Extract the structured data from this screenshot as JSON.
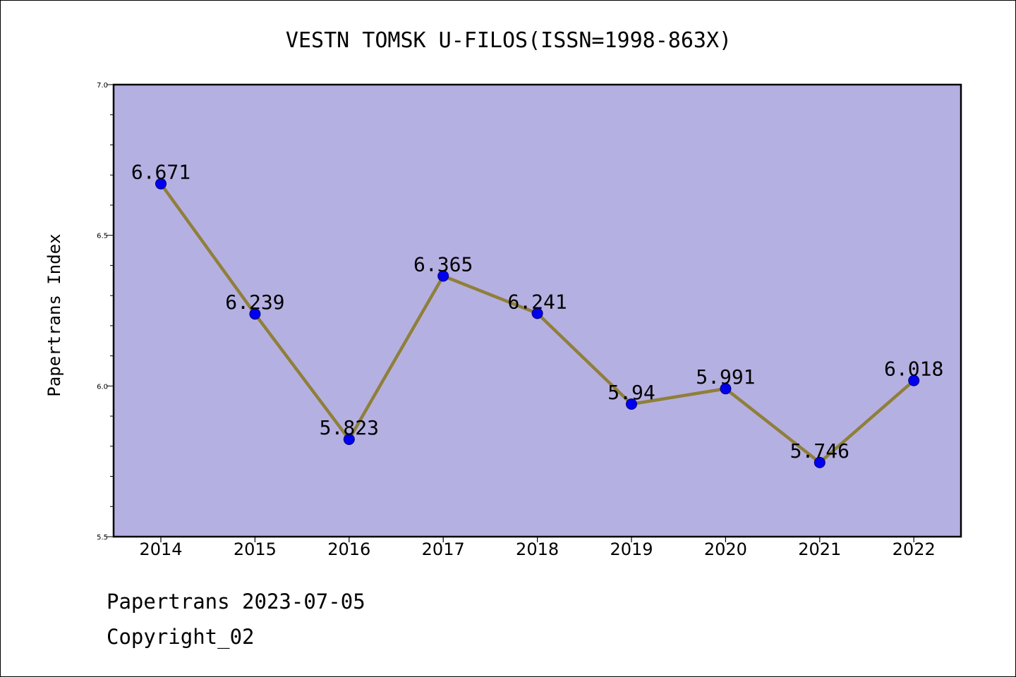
{
  "chart_data": {
    "type": "line",
    "title": "VESTN TOMSK U-FILOS(ISSN=1998-863X)",
    "ylabel": "Papertrans Index",
    "xlabel": "",
    "x": [
      "2014",
      "2015",
      "2016",
      "2017",
      "2018",
      "2019",
      "2020",
      "2021",
      "2022"
    ],
    "series": [
      {
        "values": [
          6.671,
          6.239,
          5.823,
          6.365,
          6.241,
          5.94,
          5.991,
          5.746,
          6.018
        ],
        "labels": [
          "6.671",
          "6.239",
          "5.823",
          "6.365",
          "6.241",
          "5.94",
          "5.991",
          "5.746",
          "6.018"
        ]
      }
    ],
    "ylim": [
      5.5,
      7.0
    ],
    "yticks": [
      "5.5",
      "6.0",
      "6.5",
      "7.0"
    ],
    "y_minor_step": 0.1,
    "grid": false,
    "colors": {
      "plot_background": "#b5b0e2",
      "line": "#8f7f3a",
      "marker": "#0000ee",
      "marker_edge": "#00007a"
    }
  },
  "footer": {
    "date_line": "Papertrans 2023-07-05",
    "copyright_line": "Copyright_02"
  }
}
